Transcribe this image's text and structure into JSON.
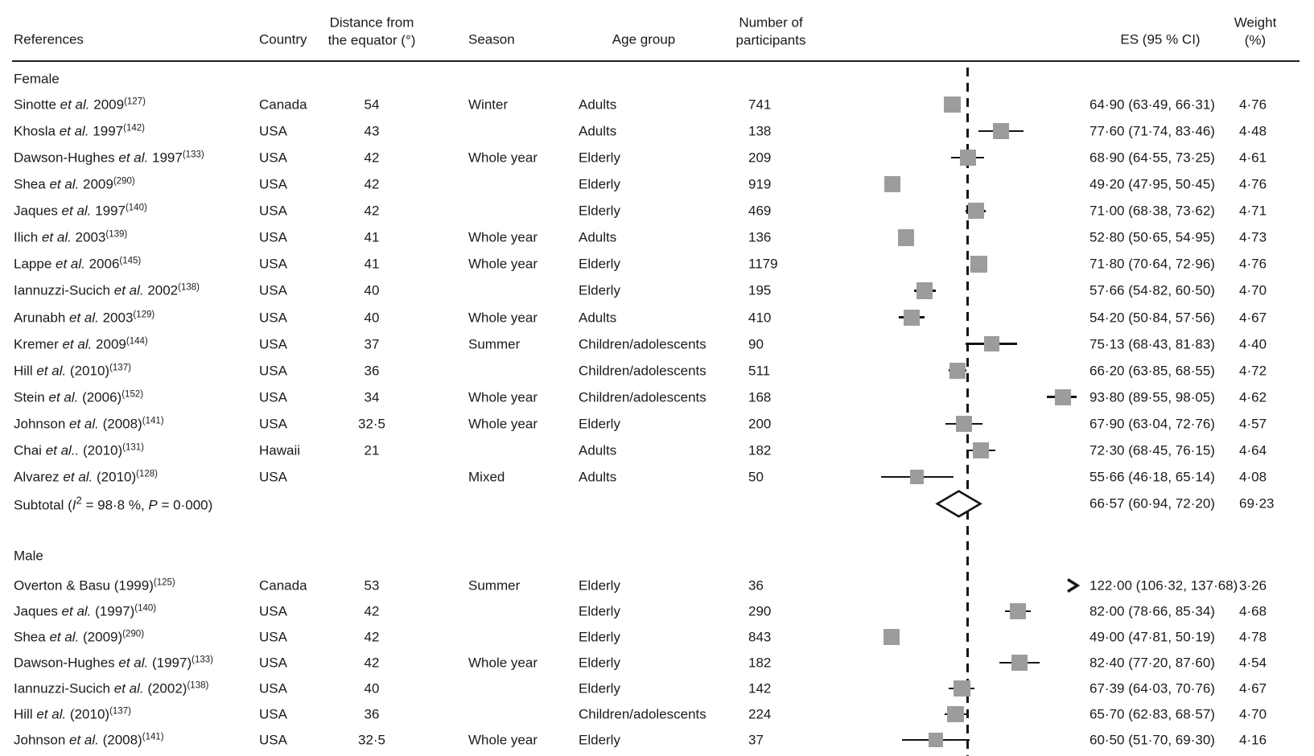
{
  "figure": {
    "background": "#ffffff",
    "text_color": "#1b1b1b",
    "marker_color": "#9c9c9c",
    "line_color": "#141414"
  },
  "header": {
    "references": "References",
    "country": "Country",
    "distance_line1": "Distance from",
    "distance_line2": "the equator (°)",
    "season": "Season",
    "age_group": "Age group",
    "participants_line1": "Number of",
    "participants_line2": "participants",
    "es_ci": "ES (95 % CI)",
    "weight_line1": "Weight",
    "weight_line2": "(%)"
  },
  "groups": [
    {
      "label": "Female",
      "rows": [
        {
          "ref_pre": "Sinotte ",
          "ref_italic": "et al.",
          "ref_post": " 2009",
          "ref_sup": "(127)",
          "country": "Canada",
          "distance": "54",
          "season": "Winter",
          "age_group": "Adults",
          "participants": "741",
          "es_text": "64·90 (63·49, 66·31)",
          "weight_text": "4·76",
          "es": 64.9,
          "lo": 63.49,
          "hi": 66.31,
          "weight": 4.76,
          "clipped": false
        },
        {
          "ref_pre": "Khosla ",
          "ref_italic": "et al.",
          "ref_post": " 1997",
          "ref_sup": "(142)",
          "country": "USA",
          "distance": "43",
          "season": "",
          "age_group": "Adults",
          "participants": "138",
          "es_text": "77·60 (71·74, 83·46)",
          "weight_text": "4·48",
          "es": 77.6,
          "lo": 71.74,
          "hi": 83.46,
          "weight": 4.48,
          "clipped": false
        },
        {
          "ref_pre": "Dawson-Hughes ",
          "ref_italic": "et al.",
          "ref_post": " 1997",
          "ref_sup": "(133)",
          "country": "USA",
          "distance": "42",
          "season": "Whole year",
          "age_group": "Elderly",
          "participants": "209",
          "es_text": "68·90 (64·55, 73·25)",
          "weight_text": "4·61",
          "es": 68.9,
          "lo": 64.55,
          "hi": 73.25,
          "weight": 4.61,
          "clipped": false
        },
        {
          "ref_pre": "Shea ",
          "ref_italic": "et al.",
          "ref_post": " 2009",
          "ref_sup": "(290)",
          "country": "USA",
          "distance": "42",
          "season": "",
          "age_group": "Elderly",
          "participants": "919",
          "es_text": "49·20 (47·95, 50·45)",
          "weight_text": "4·76",
          "es": 49.2,
          "lo": 47.95,
          "hi": 50.45,
          "weight": 4.76,
          "clipped": false
        },
        {
          "ref_pre": "Jaques ",
          "ref_italic": "et al.",
          "ref_post": " 1997",
          "ref_sup": "(140)",
          "country": "USA",
          "distance": "42",
          "season": "",
          "age_group": "Elderly",
          "participants": "469",
          "es_text": "71·00 (68·38, 73·62)",
          "weight_text": "4·71",
          "es": 71.0,
          "lo": 68.38,
          "hi": 73.62,
          "weight": 4.71,
          "clipped": false
        },
        {
          "ref_pre": "Ilich ",
          "ref_italic": "et al.",
          "ref_post": " 2003",
          "ref_sup": "(139)",
          "country": "USA",
          "distance": "41",
          "season": "Whole year",
          "age_group": "Adults",
          "participants": "136",
          "es_text": "52·80 (50·65, 54·95)",
          "weight_text": "4·73",
          "es": 52.8,
          "lo": 50.65,
          "hi": 54.95,
          "weight": 4.73,
          "clipped": false
        },
        {
          "ref_pre": "Lappe ",
          "ref_italic": "et al.",
          "ref_post": " 2006",
          "ref_sup": "(145)",
          "country": "USA",
          "distance": "41",
          "season": "Whole year",
          "age_group": "Elderly",
          "participants": "1179",
          "es_text": "71·80 (70·64, 72·96)",
          "weight_text": "4·76",
          "es": 71.8,
          "lo": 70.64,
          "hi": 72.96,
          "weight": 4.76,
          "clipped": false
        },
        {
          "ref_pre": "Iannuzzi-Sucich ",
          "ref_italic": "et al.",
          "ref_post": " 2002",
          "ref_sup": "(138)",
          "country": "USA",
          "distance": "40",
          "season": "",
          "age_group": "Elderly",
          "participants": "195",
          "es_text": "57·66 (54·82, 60·50)",
          "weight_text": "4·70",
          "es": 57.66,
          "lo": 54.82,
          "hi": 60.5,
          "weight": 4.7,
          "clipped": false
        },
        {
          "ref_pre": "Arunabh ",
          "ref_italic": "et al.",
          "ref_post": " 2003",
          "ref_sup": "(129)",
          "country": "USA",
          "distance": "40",
          "season": "Whole year",
          "age_group": "Adults",
          "participants": "410",
          "es_text": "54·20 (50·84, 57·56)",
          "weight_text": "4·67",
          "es": 54.2,
          "lo": 50.84,
          "hi": 57.56,
          "weight": 4.67,
          "clipped": false
        },
        {
          "ref_pre": "Kremer ",
          "ref_italic": "et al.",
          "ref_post": " 2009",
          "ref_sup": "(144)",
          "country": "USA",
          "distance": "37",
          "season": "Summer",
          "age_group": "Children/adolescents",
          "participants": "90",
          "es_text": "75·13 (68·43, 81·83)",
          "weight_text": "4·40",
          "es": 75.13,
          "lo": 68.43,
          "hi": 81.83,
          "weight": 4.4,
          "clipped": false
        },
        {
          "ref_pre": "Hill ",
          "ref_italic": "et al.",
          "ref_post": " (2010)",
          "ref_sup": "(137)",
          "country": "USA",
          "distance": "36",
          "season": "",
          "age_group": "Children/adolescents",
          "participants": "511",
          "es_text": "66·20 (63·85, 68·55)",
          "weight_text": "4·72",
          "es": 66.2,
          "lo": 63.85,
          "hi": 68.55,
          "weight": 4.72,
          "clipped": false
        },
        {
          "ref_pre": "Stein ",
          "ref_italic": "et al.",
          "ref_post": " (2006)",
          "ref_sup": "(152)",
          "country": "USA",
          "distance": "34",
          "season": "Whole year",
          "age_group": "Children/adolescents",
          "participants": "168",
          "es_text": "93·80 (89·55, 98·05)",
          "weight_text": "4·62",
          "es": 93.8,
          "lo": 89.55,
          "hi": 98.05,
          "weight": 4.62,
          "clipped": false
        },
        {
          "ref_pre": "Johnson ",
          "ref_italic": "et al.",
          "ref_post": " (2008)",
          "ref_sup": "(141)",
          "country": "USA",
          "distance": "32·5",
          "season": "Whole year",
          "age_group": "Elderly",
          "participants": "200",
          "es_text": "67·90 (63·04, 72·76)",
          "weight_text": "4·57",
          "es": 67.9,
          "lo": 63.04,
          "hi": 72.76,
          "weight": 4.57,
          "clipped": false
        },
        {
          "ref_pre": "Chai ",
          "ref_italic": "et al..",
          "ref_post": " (2010)",
          "ref_sup": "(131)",
          "country": "Hawaii",
          "distance": "21",
          "season": "",
          "age_group": "Adults",
          "participants": "182",
          "es_text": "72·30 (68·45, 76·15)",
          "weight_text": "4·64",
          "es": 72.3,
          "lo": 68.45,
          "hi": 76.15,
          "weight": 4.64,
          "clipped": false
        },
        {
          "ref_pre": "Alvarez ",
          "ref_italic": "et al.",
          "ref_post": " (2010)",
          "ref_sup": "(128)",
          "country": "USA",
          "distance": "",
          "season": "Mixed",
          "age_group": "Adults",
          "participants": "50",
          "es_text": "55·66 (46·18, 65·14)",
          "weight_text": "4·08",
          "es": 55.66,
          "lo": 46.18,
          "hi": 65.14,
          "weight": 4.08,
          "clipped": false
        }
      ],
      "subtotal": {
        "prefix": "Subtotal (",
        "i_label": "I",
        "i_sup": "2",
        "mid": " = 98·8 %, ",
        "p_label": "P",
        "suffix": " = 0·000)",
        "es_text": "66·57 (60·94, 72·20)",
        "weight_text": "69·23",
        "es": 66.57,
        "lo": 60.94,
        "hi": 72.2
      }
    },
    {
      "label": "Male",
      "rows": [
        {
          "ref_pre": "Overton & Basu (1999)",
          "ref_italic": "",
          "ref_post": "",
          "ref_sup": "(125)",
          "country": "Canada",
          "distance": "53",
          "season": "Summer",
          "age_group": "Elderly",
          "participants": "36",
          "es_text": "122·00 (106·32, 137·68)",
          "weight_text": "3·26",
          "es": 122.0,
          "lo": 106.32,
          "hi": 137.68,
          "weight": 3.26,
          "clipped": true
        },
        {
          "ref_pre": "Jaques ",
          "ref_italic": "et al.",
          "ref_post": " (1997)",
          "ref_sup": "(140)",
          "country": "USA",
          "distance": "42",
          "season": "",
          "age_group": "Elderly",
          "participants": "290",
          "es_text": "82·00 (78·66, 85·34)",
          "weight_text": "4·68",
          "es": 82.0,
          "lo": 78.66,
          "hi": 85.34,
          "weight": 4.68,
          "clipped": false
        },
        {
          "ref_pre": "Shea ",
          "ref_italic": "et al.",
          "ref_post": " (2009)",
          "ref_sup": "(290)",
          "country": "USA",
          "distance": "42",
          "season": "",
          "age_group": "Elderly",
          "participants": "843",
          "es_text": "49·00 (47·81, 50·19)",
          "weight_text": "4·78",
          "es": 49.0,
          "lo": 47.81,
          "hi": 50.19,
          "weight": 4.78,
          "clipped": false
        },
        {
          "ref_pre": "Dawson-Hughes ",
          "ref_italic": "et al.",
          "ref_post": " (1997)",
          "ref_sup": "(133)",
          "country": "USA",
          "distance": "42",
          "season": "Whole year",
          "age_group": "Elderly",
          "participants": "182",
          "es_text": "82·40 (77·20, 87·60)",
          "weight_text": "4·54",
          "es": 82.4,
          "lo": 77.2,
          "hi": 87.6,
          "weight": 4.54,
          "clipped": false
        },
        {
          "ref_pre": "Iannuzzi-Sucich ",
          "ref_italic": "et al.",
          "ref_post": " (2002)",
          "ref_sup": "(138)",
          "country": "USA",
          "distance": "40",
          "season": "",
          "age_group": "Elderly",
          "participants": "142",
          "es_text": "67·39 (64·03, 70·76)",
          "weight_text": "4·67",
          "es": 67.39,
          "lo": 64.03,
          "hi": 70.76,
          "weight": 4.67,
          "clipped": false
        },
        {
          "ref_pre": "Hill ",
          "ref_italic": "et al.",
          "ref_post": " (2010)",
          "ref_sup": "(137)",
          "country": "USA",
          "distance": "36",
          "season": "",
          "age_group": "Children/adolescents",
          "participants": "224",
          "es_text": "65·70 (62·83, 68·57)",
          "weight_text": "4·70",
          "es": 65.7,
          "lo": 62.83,
          "hi": 68.57,
          "weight": 4.7,
          "clipped": false
        },
        {
          "ref_pre": "Johnson ",
          "ref_italic": "et al.",
          "ref_post": " (2008)",
          "ref_sup": "(141)",
          "country": "USA",
          "distance": "32·5",
          "season": "Whole year",
          "age_group": "Elderly",
          "participants": "37",
          "es_text": "60·50 (51·70, 69·30)",
          "weight_text": "4·16",
          "es": 60.5,
          "lo": 51.7,
          "hi": 69.3,
          "weight": 4.16,
          "clipped": false
        }
      ],
      "subtotal": null
    }
  ],
  "chart_data": {
    "type": "scatter",
    "variant": "forest-plot",
    "title": "",
    "x_axis": {
      "label": "ES (95 % CI)",
      "visible_range_estimated": [
        34.7,
        97.4
      ],
      "reference_line_value_estimated": 68.8,
      "reference_line_style": "dashed"
    },
    "legend": "none",
    "groups": [
      {
        "name": "Female",
        "studies": [
          {
            "label": "Sinotte et al. 2009 (127)",
            "es": 64.9,
            "ci": [
              63.49,
              66.31
            ],
            "weight_pct": 4.76
          },
          {
            "label": "Khosla et al. 1997 (142)",
            "es": 77.6,
            "ci": [
              71.74,
              83.46
            ],
            "weight_pct": 4.48
          },
          {
            "label": "Dawson-Hughes et al. 1997 (133)",
            "es": 68.9,
            "ci": [
              64.55,
              73.25
            ],
            "weight_pct": 4.61
          },
          {
            "label": "Shea et al. 2009 (290)",
            "es": 49.2,
            "ci": [
              47.95,
              50.45
            ],
            "weight_pct": 4.76
          },
          {
            "label": "Jaques et al. 1997 (140)",
            "es": 71.0,
            "ci": [
              68.38,
              73.62
            ],
            "weight_pct": 4.71
          },
          {
            "label": "Ilich et al. 2003 (139)",
            "es": 52.8,
            "ci": [
              50.65,
              54.95
            ],
            "weight_pct": 4.73
          },
          {
            "label": "Lappe et al. 2006 (145)",
            "es": 71.8,
            "ci": [
              70.64,
              72.96
            ],
            "weight_pct": 4.76
          },
          {
            "label": "Iannuzzi-Sucich et al. 2002 (138)",
            "es": 57.66,
            "ci": [
              54.82,
              60.5
            ],
            "weight_pct": 4.7
          },
          {
            "label": "Arunabh et al. 2003 (129)",
            "es": 54.2,
            "ci": [
              50.84,
              57.56
            ],
            "weight_pct": 4.67
          },
          {
            "label": "Kremer et al. 2009 (144)",
            "es": 75.13,
            "ci": [
              68.43,
              81.83
            ],
            "weight_pct": 4.4
          },
          {
            "label": "Hill et al. (2010) (137)",
            "es": 66.2,
            "ci": [
              63.85,
              68.55
            ],
            "weight_pct": 4.72
          },
          {
            "label": "Stein et al. (2006) (152)",
            "es": 93.8,
            "ci": [
              89.55,
              98.05
            ],
            "weight_pct": 4.62
          },
          {
            "label": "Johnson et al. (2008) (141)",
            "es": 67.9,
            "ci": [
              63.04,
              72.76
            ],
            "weight_pct": 4.57
          },
          {
            "label": "Chai et al.. (2010) (131)",
            "es": 72.3,
            "ci": [
              68.45,
              76.15
            ],
            "weight_pct": 4.64
          },
          {
            "label": "Alvarez et al. (2010) (128)",
            "es": 55.66,
            "ci": [
              46.18,
              65.14
            ],
            "weight_pct": 4.08
          }
        ],
        "subtotal": {
          "label": "Subtotal (I2 = 98·8 %, P = 0·000)",
          "es": 66.57,
          "ci": [
            60.94,
            72.2
          ],
          "weight_pct": 69.23,
          "marker": "diamond"
        }
      },
      {
        "name": "Male",
        "studies": [
          {
            "label": "Overton & Basu (1999) (125)",
            "es": 122.0,
            "ci": [
              106.32,
              137.68
            ],
            "weight_pct": 3.26,
            "ci_offscale_right": true
          },
          {
            "label": "Jaques et al. (1997) (140)",
            "es": 82.0,
            "ci": [
              78.66,
              85.34
            ],
            "weight_pct": 4.68
          },
          {
            "label": "Shea et al. (2009) (290)",
            "es": 49.0,
            "ci": [
              47.81,
              50.19
            ],
            "weight_pct": 4.78
          },
          {
            "label": "Dawson-Hughes et al. (1997) (133)",
            "es": 82.4,
            "ci": [
              77.2,
              87.6
            ],
            "weight_pct": 4.54
          },
          {
            "label": "Iannuzzi-Sucich et al. (2002) (138)",
            "es": 67.39,
            "ci": [
              64.03,
              70.76
            ],
            "weight_pct": 4.67
          },
          {
            "label": "Hill et al. (2010) (137)",
            "es": 65.7,
            "ci": [
              62.83,
              68.57
            ],
            "weight_pct": 4.7
          },
          {
            "label": "Johnson et al. (2008) (141)",
            "es": 60.5,
            "ci": [
              51.7,
              69.3
            ],
            "weight_pct": 4.16
          }
        ]
      }
    ]
  }
}
